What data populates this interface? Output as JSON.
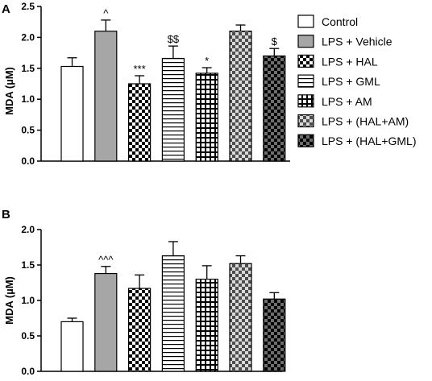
{
  "chart_data": [
    {
      "panel": "A",
      "type": "bar",
      "ylabel": "MDA (µM)",
      "ylim": [
        0,
        2.5
      ],
      "yticks": [
        "0.0",
        "0.5",
        "1.0",
        "1.5",
        "2.0",
        "2.5"
      ],
      "grid": false,
      "legend_position": "right",
      "categories": [
        "Control",
        "LPS + Vehicle",
        "LPS + HAL",
        "LPS + GML",
        "LPS + AM",
        "LPS + (HAL+AM)",
        "LPS + (HAL+GML)"
      ],
      "values": [
        1.53,
        2.1,
        1.25,
        1.66,
        1.42,
        2.1,
        1.7
      ],
      "errors": [
        0.14,
        0.18,
        0.13,
        0.2,
        0.09,
        0.1,
        0.12
      ],
      "annotations": [
        "",
        "^",
        "***",
        "$$",
        "*",
        "",
        "$"
      ]
    },
    {
      "panel": "B",
      "type": "bar",
      "ylabel": "MDA (µM)",
      "ylim": [
        0,
        2.0
      ],
      "yticks": [
        "0.0",
        "0.5",
        "1.0",
        "1.5",
        "2.0"
      ],
      "grid": false,
      "categories": [
        "Control",
        "LPS + Vehicle",
        "LPS + HAL",
        "LPS + GML",
        "LPS + AM",
        "LPS + (HAL+AM)",
        "LPS + (HAL+GML)"
      ],
      "values": [
        0.7,
        1.38,
        1.17,
        1.63,
        1.3,
        1.52,
        1.02
      ],
      "errors": [
        0.05,
        0.1,
        0.19,
        0.2,
        0.19,
        0.11,
        0.09
      ],
      "annotations": [
        "",
        "^^^",
        "",
        "",
        "",
        "",
        ""
      ]
    }
  ],
  "legend": [
    {
      "label": "Control",
      "pattern": "white"
    },
    {
      "label": "LPS + Vehicle",
      "pattern": "gray"
    },
    {
      "label": "LPS + HAL",
      "pattern": "checker"
    },
    {
      "label": "LPS + GML",
      "pattern": "hstripe"
    },
    {
      "label": "LPS + AM",
      "pattern": "grid"
    },
    {
      "label": "LPS + (HAL+AM)",
      "pattern": "checker-gray"
    },
    {
      "label": "LPS + (HAL+GML)",
      "pattern": "checker-dark"
    }
  ],
  "colors": {
    "vehicle_fill": "#a6a6a6",
    "checker_gray_dark": "#4d4d4d",
    "checker_gray_light": "#d9d9d9",
    "checker_dark_dark": "#000000",
    "checker_dark_light": "#6e6e6e"
  }
}
